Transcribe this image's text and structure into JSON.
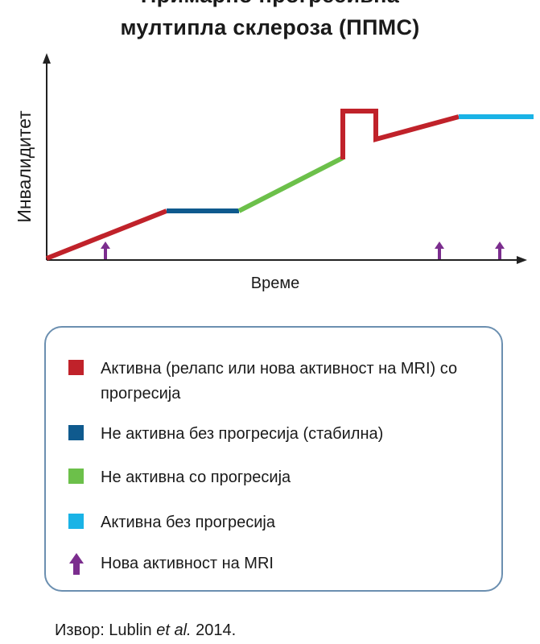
{
  "title_line1": "Примарно прогресивна",
  "title_line2": "мултипла склероза (ППМС)",
  "colors": {
    "active_progression": "#c0222a",
    "inactive_stable": "#0f5a8e",
    "inactive_progression": "#6cc04a",
    "active_no_progression": "#1ab3e6",
    "mri_arrow": "#7b2d8e",
    "axis": "#222222",
    "legend_border": "#6b8fb0"
  },
  "diagram": {
    "y_axis_label": "Инвалидитет",
    "x_axis_label": "Време",
    "mri_event_count": 3
  },
  "legend": {
    "items": [
      {
        "key": "active_progression",
        "label": "Активна (релапс или нова активност на MRI) со прогресија",
        "icon": "square"
      },
      {
        "key": "inactive_stable",
        "label": "Не активна без прогресија (стабилна)",
        "icon": "square"
      },
      {
        "key": "inactive_progression",
        "label": "Не активна со прогресија",
        "icon": "square"
      },
      {
        "key": "active_no_progression",
        "label": "Активна без прогресија",
        "icon": "square"
      },
      {
        "key": "mri_arrow",
        "label": "Нова активност на MRI",
        "icon": "up-arrow-icon"
      }
    ]
  },
  "source": {
    "prefix": "Извор: Lublin ",
    "italic": "et al.",
    "suffix": " 2014."
  }
}
